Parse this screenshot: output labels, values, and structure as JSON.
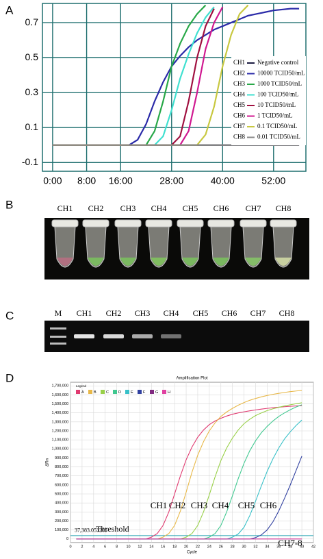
{
  "panels": {
    "a": "A",
    "b": "B",
    "c": "C",
    "d": "D"
  },
  "tube_photo": {
    "labels": [
      "CH1",
      "CH2",
      "CH3",
      "CH4",
      "CH5",
      "CH6",
      "CH7",
      "CH8"
    ]
  },
  "gel": {
    "labels": [
      "M",
      "CH1",
      "CH2",
      "CH3",
      "CH4",
      "CH5",
      "CH6",
      "CH7",
      "CH8"
    ]
  },
  "chart_data": [
    {
      "type": "line",
      "x": [
        0,
        2,
        4,
        6,
        8,
        10,
        12,
        14,
        16,
        18,
        20,
        22,
        24,
        26,
        28,
        30,
        32,
        34,
        36,
        38,
        40,
        42,
        44,
        46,
        48,
        50,
        52,
        54,
        56,
        58
      ],
      "xlim": [
        -2.4,
        59.6
      ],
      "xticks": [
        {
          "value": 0,
          "label": "0:00"
        },
        {
          "value": 8,
          "label": "8:00"
        },
        {
          "value": 16,
          "label": "16:00"
        },
        {
          "value": 28,
          "label": "28:00"
        },
        {
          "value": 40,
          "label": "40:00"
        },
        {
          "value": 52,
          "label": "52:00"
        }
      ],
      "ylim": [
        -0.15,
        0.81
      ],
      "yticks": [
        0.7,
        0.5,
        0.3,
        0.1,
        -0.1
      ],
      "grid": true,
      "series": [
        {
          "channel": "CH1",
          "name": "Negative control",
          "color": "#1a1a40",
          "values": [
            0,
            0,
            0,
            0,
            0,
            0,
            0,
            0,
            0,
            0,
            0,
            0,
            0,
            0,
            0,
            0,
            0,
            0,
            0,
            0,
            0,
            0,
            0,
            0,
            0,
            0,
            0,
            0,
            0,
            0
          ]
        },
        {
          "channel": "CH2",
          "name": "10000 TCID50/mL",
          "color": "#2a2aa8",
          "values": [
            0,
            0,
            0,
            0,
            0,
            0,
            0,
            0,
            0,
            0,
            0.03,
            0.12,
            0.25,
            0.36,
            0.45,
            0.51,
            0.56,
            0.6,
            0.63,
            0.66,
            0.68,
            0.7,
            0.72,
            0.74,
            0.75,
            0.76,
            0.77,
            0.775,
            0.78,
            0.78
          ]
        },
        {
          "channel": "CH3",
          "name": "1000 TCID50/mL",
          "color": "#28a848",
          "values": [
            0,
            0,
            0,
            0,
            0,
            0,
            0,
            0,
            0,
            0,
            0,
            0,
            0.08,
            0.25,
            0.45,
            0.58,
            0.68,
            0.75,
            0.8,
            null,
            null,
            null,
            null,
            null,
            null,
            null,
            null,
            null,
            null,
            null
          ]
        },
        {
          "channel": "CH4",
          "name": "100 TCID50/mL",
          "color": "#3fe0d0",
          "values": [
            0,
            0,
            0,
            0,
            0,
            0,
            0,
            0,
            0,
            0,
            0,
            0,
            0,
            0.05,
            0.2,
            0.38,
            0.52,
            0.64,
            0.73,
            0.79,
            null,
            null,
            null,
            null,
            null,
            null,
            null,
            null,
            null,
            null
          ]
        },
        {
          "channel": "CH5",
          "name": "10 TCID50/mL",
          "color": "#a01040",
          "values": [
            0,
            0,
            0,
            0,
            0,
            0,
            0,
            0,
            0,
            0,
            0,
            0,
            0,
            0,
            0,
            0.05,
            0.25,
            0.5,
            0.68,
            0.78,
            null,
            null,
            null,
            null,
            null,
            null,
            null,
            null,
            null,
            null
          ]
        },
        {
          "channel": "CH6",
          "name": "1 TCID50/mL",
          "color": "#d01890",
          "values": [
            0,
            0,
            0,
            0,
            0,
            0,
            0,
            0,
            0,
            0,
            0,
            0,
            0,
            0,
            0,
            0,
            0.08,
            0.3,
            0.55,
            0.7,
            0.79,
            null,
            null,
            null,
            null,
            null,
            null,
            null,
            null,
            null
          ]
        },
        {
          "channel": "CH7",
          "name": "0.1 TCID50/mL",
          "color": "#c8c840",
          "values": [
            0,
            0,
            0,
            0,
            0,
            0,
            0,
            0,
            0,
            0,
            0,
            0,
            0,
            0,
            0,
            0,
            0,
            0,
            0.06,
            0.22,
            0.45,
            0.63,
            0.75,
            0.8,
            null,
            null,
            null,
            null,
            null,
            null
          ]
        },
        {
          "channel": "CH8",
          "name": "0.01 TCID50/mL",
          "color": "#888888",
          "values": [
            0,
            0,
            0,
            0,
            0,
            0,
            0,
            0,
            0,
            0,
            0,
            0,
            0,
            0,
            0,
            0,
            0,
            0,
            0,
            0,
            0,
            0,
            0,
            0,
            0,
            0,
            0,
            0,
            0,
            0
          ]
        }
      ]
    },
    {
      "type": "line",
      "title": "Amplification Plot",
      "x_label": "Cycle",
      "y_label": "ΔRn",
      "legend_title": "Legend",
      "x": [
        1,
        2,
        3,
        4,
        5,
        6,
        7,
        8,
        9,
        10,
        11,
        12,
        13,
        14,
        15,
        16,
        17,
        18,
        19,
        20,
        21,
        22,
        23,
        24,
        25,
        26,
        27,
        28,
        29,
        30,
        31,
        32,
        33,
        34,
        35,
        36,
        37,
        38,
        39,
        40
      ],
      "xlim": [
        0,
        42
      ],
      "xticks": [
        0,
        2,
        4,
        6,
        8,
        10,
        12,
        14,
        16,
        18,
        20,
        22,
        24,
        26,
        28,
        30,
        32,
        34,
        36,
        38,
        40,
        42
      ],
      "ylim": [
        -40000,
        1740000
      ],
      "yticks": [
        0,
        {
          "value": 100000,
          "label": "100,000"
        },
        {
          "value": 200000,
          "label": "200,000"
        },
        {
          "value": 300000,
          "label": "300,000"
        },
        {
          "value": 400000,
          "label": "400,000"
        },
        {
          "value": 500000,
          "label": "500,000"
        },
        {
          "value": 600000,
          "label": "600,000"
        },
        {
          "value": 700000,
          "label": "700,000"
        },
        {
          "value": 800000,
          "label": "800,000"
        },
        {
          "value": 900000,
          "label": "900,000"
        },
        {
          "value": 1000000,
          "label": "1,000,000"
        },
        {
          "value": 1100000,
          "label": "1,100,000"
        },
        {
          "value": 1200000,
          "label": "1,200,000"
        },
        {
          "value": 1300000,
          "label": "1,300,000"
        },
        {
          "value": 1400000,
          "label": "1,400,000"
        },
        {
          "value": 1500000,
          "label": "1,500,000"
        },
        {
          "value": 1600000,
          "label": "1,600,000"
        },
        {
          "value": 1700000,
          "label": "1,700,000"
        }
      ],
      "grid": true,
      "threshold": 37383.053205,
      "threshold_value_label": "37,383.053205",
      "threshold_label": "Threshold",
      "annotations": [
        "CH1",
        "CH2",
        "CH3",
        "CH4",
        "CH5",
        "CH6",
        "CH7-8"
      ],
      "series": [
        {
          "name": "A",
          "color": "#e03a70",
          "values": [
            0,
            0,
            0,
            0,
            0,
            0,
            0,
            0,
            0,
            0,
            0,
            0,
            0,
            20000,
            60000,
            150000,
            300000,
            500000,
            700000,
            880000,
            1020000,
            1130000,
            1210000,
            1270000,
            1310000,
            1340000,
            1365000,
            1385000,
            1400000,
            1412000,
            1423000,
            1433000,
            1442000,
            1450000,
            1457000,
            1463000,
            1468000,
            1473000,
            1477000,
            1480000
          ]
        },
        {
          "name": "B",
          "color": "#e8b848",
          "values": [
            0,
            0,
            0,
            0,
            0,
            0,
            0,
            0,
            0,
            0,
            0,
            0,
            0,
            0,
            0,
            20000,
            60000,
            150000,
            310000,
            520000,
            740000,
            930000,
            1080000,
            1200000,
            1290000,
            1360000,
            1410000,
            1450000,
            1485000,
            1515000,
            1540000,
            1560000,
            1578000,
            1593000,
            1606000,
            1617000,
            1627000,
            1636000,
            1643000,
            1650000
          ]
        },
        {
          "name": "C",
          "color": "#98d048",
          "values": [
            0,
            0,
            0,
            0,
            0,
            0,
            0,
            0,
            0,
            0,
            0,
            0,
            0,
            0,
            0,
            0,
            0,
            0,
            0,
            20000,
            60000,
            150000,
            300000,
            490000,
            690000,
            870000,
            1010000,
            1120000,
            1210000,
            1280000,
            1330000,
            1370000,
            1400000,
            1425000,
            1445000,
            1462000,
            1477000,
            1490000,
            1502000,
            1512000
          ]
        },
        {
          "name": "D",
          "color": "#40c890",
          "values": [
            0,
            0,
            0,
            0,
            0,
            0,
            0,
            0,
            0,
            0,
            0,
            0,
            0,
            0,
            0,
            0,
            0,
            0,
            0,
            0,
            0,
            0,
            0,
            20000,
            60000,
            150000,
            300000,
            480000,
            670000,
            840000,
            980000,
            1090000,
            1180000,
            1250000,
            1310000,
            1360000,
            1400000,
            1435000,
            1465000,
            1490000
          ]
        },
        {
          "name": "E",
          "color": "#38c0c8",
          "values": [
            0,
            0,
            0,
            0,
            0,
            0,
            0,
            0,
            0,
            0,
            0,
            0,
            0,
            0,
            0,
            0,
            0,
            0,
            0,
            0,
            0,
            0,
            0,
            0,
            0,
            0,
            0,
            20000,
            55000,
            130000,
            260000,
            420000,
            590000,
            750000,
            890000,
            1010000,
            1110000,
            1190000,
            1260000,
            1320000
          ]
        },
        {
          "name": "F",
          "color": "#3040a0",
          "values": [
            0,
            0,
            0,
            0,
            0,
            0,
            0,
            0,
            0,
            0,
            0,
            0,
            0,
            0,
            0,
            0,
            0,
            0,
            0,
            0,
            0,
            0,
            0,
            0,
            0,
            0,
            0,
            0,
            0,
            0,
            0,
            15000,
            45000,
            100000,
            190000,
            310000,
            450000,
            600000,
            760000,
            920000
          ]
        },
        {
          "name": "G",
          "color": "#802a80",
          "values": [
            0,
            0,
            0,
            0,
            0,
            0,
            0,
            0,
            0,
            0,
            0,
            0,
            0,
            0,
            0,
            0,
            0,
            0,
            0,
            0,
            0,
            0,
            0,
            0,
            0,
            0,
            0,
            0,
            0,
            0,
            0,
            0,
            0,
            0,
            0,
            0,
            0,
            0,
            0,
            0
          ]
        },
        {
          "name": "H",
          "color": "#e040a0",
          "values": [
            0,
            0,
            0,
            0,
            0,
            0,
            0,
            0,
            0,
            0,
            0,
            0,
            0,
            0,
            0,
            0,
            0,
            0,
            0,
            0,
            0,
            0,
            0,
            0,
            0,
            0,
            0,
            0,
            0,
            0,
            0,
            0,
            0,
            0,
            0,
            0,
            0,
            0,
            0,
            0
          ]
        }
      ]
    }
  ]
}
